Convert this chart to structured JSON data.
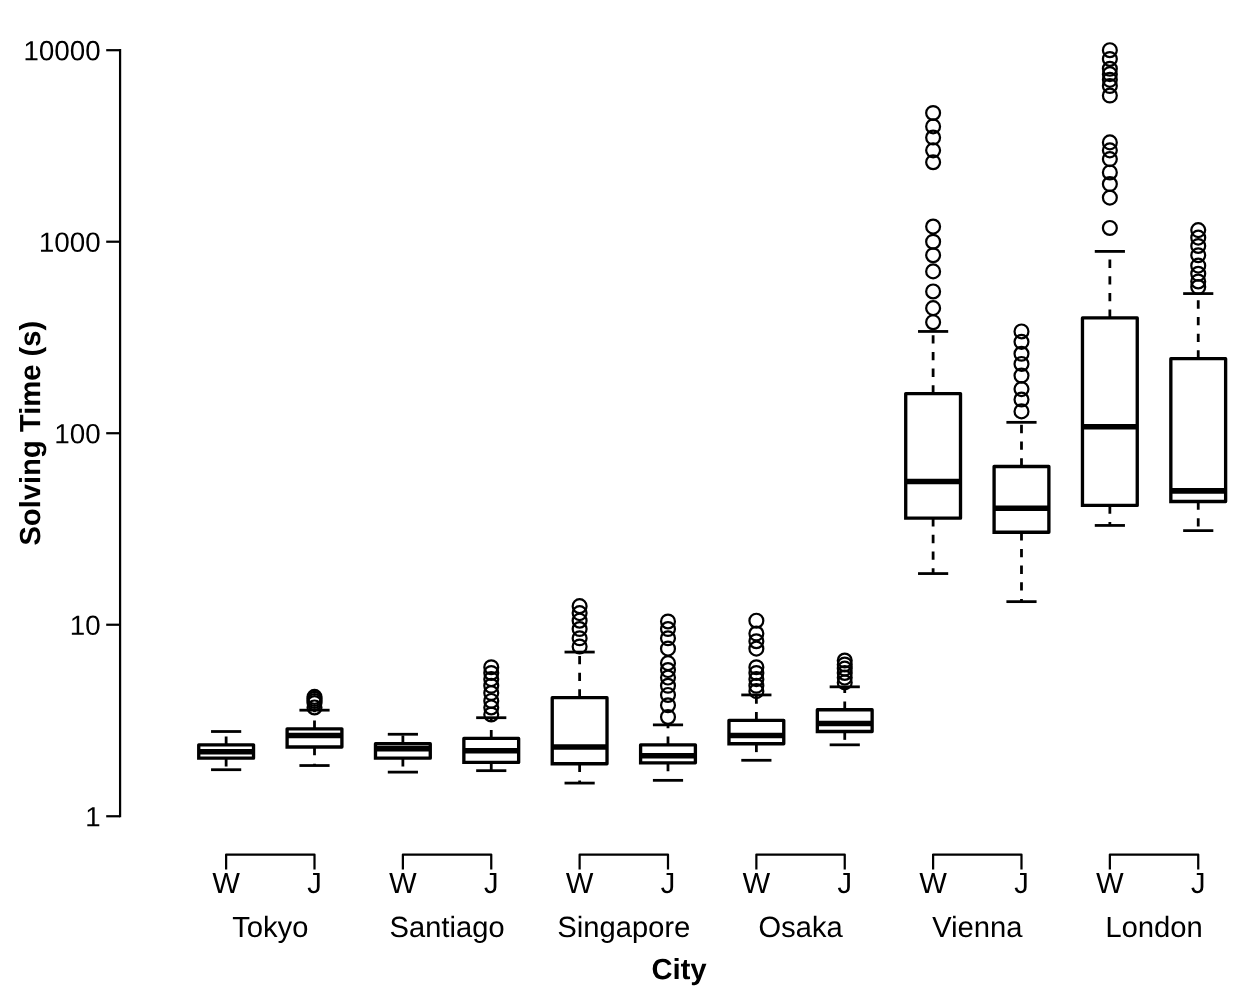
{
  "chart_data": {
    "type": "box",
    "xlabel": "City",
    "ylabel": "Solving Time (s)",
    "categories": [
      "W",
      "J",
      "W",
      "J",
      "W",
      "J",
      "W",
      "J",
      "W",
      "J",
      "W",
      "J"
    ],
    "annotations": [
      "Tokyo",
      "Santiago",
      "Singapore",
      "Osaka",
      "Vienna",
      "London"
    ],
    "log": "y",
    "ylim": [
      1,
      10000
    ],
    "yticks": [
      1,
      10,
      100,
      1000,
      10000
    ],
    "grid": false,
    "legend": false,
    "boxes": [
      {
        "low": 1.75,
        "q1": 2.01,
        "median": 2.17,
        "q3": 2.36,
        "high": 2.77
      },
      {
        "low": 1.84,
        "q1": 2.3,
        "median": 2.64,
        "q3": 2.86,
        "high": 3.58,
        "outliers": [
          3.7,
          3.9,
          4.0,
          4.1,
          4.2
        ]
      },
      {
        "low": 1.7,
        "q1": 2.01,
        "median": 2.25,
        "q3": 2.39,
        "high": 2.68
      },
      {
        "low": 1.73,
        "q1": 1.91,
        "median": 2.2,
        "q3": 2.55,
        "high": 3.27,
        "outliers": [
          3.4,
          3.7,
          4.0,
          4.4,
          4.8,
          5.2,
          5.6,
          6.0
        ]
      },
      {
        "low": 1.49,
        "q1": 1.88,
        "median": 2.3,
        "q3": 4.16,
        "high": 7.2,
        "outliers": [
          7.7,
          8.5,
          9.5,
          10.5,
          11.5,
          12.5
        ]
      },
      {
        "low": 1.54,
        "q1": 1.9,
        "median": 2.07,
        "q3": 2.36,
        "high": 3.0,
        "outliers": [
          3.3,
          3.8,
          4.3,
          4.8,
          5.3,
          5.8,
          6.3,
          7.5,
          8.5,
          9.5,
          10.4
        ]
      },
      {
        "low": 1.96,
        "q1": 2.39,
        "median": 2.64,
        "q3": 3.17,
        "high": 4.3,
        "outliers": [
          4.5,
          4.8,
          5.2,
          5.6,
          6.0,
          7.5,
          8.2,
          9.0,
          10.5
        ]
      },
      {
        "low": 2.36,
        "q1": 2.77,
        "median": 3.05,
        "q3": 3.6,
        "high": 4.74,
        "outliers": [
          5.0,
          5.3,
          5.6,
          5.9,
          6.2,
          6.5
        ]
      },
      {
        "low": 18.5,
        "q1": 36,
        "median": 56,
        "q3": 161,
        "high": 340,
        "outliers": [
          380,
          450,
          550,
          700,
          850,
          1000,
          1200,
          2600,
          3000,
          3500,
          4000,
          4700
        ]
      },
      {
        "low": 13.2,
        "q1": 30.4,
        "median": 40.6,
        "q3": 67,
        "high": 114,
        "outliers": [
          130,
          150,
          170,
          200,
          230,
          260,
          300,
          340
        ]
      },
      {
        "low": 33,
        "q1": 42,
        "median": 108,
        "q3": 400,
        "high": 890,
        "outliers": [
          1180,
          1700,
          2000,
          2300,
          2700,
          3000,
          3300,
          5800,
          6500,
          7000,
          7500,
          8000,
          9000,
          10000
        ]
      },
      {
        "low": 31,
        "q1": 44,
        "median": 50,
        "q3": 245,
        "high": 536,
        "outliers": [
          580,
          620,
          680,
          750,
          850,
          950,
          1050,
          1150
        ]
      }
    ]
  }
}
